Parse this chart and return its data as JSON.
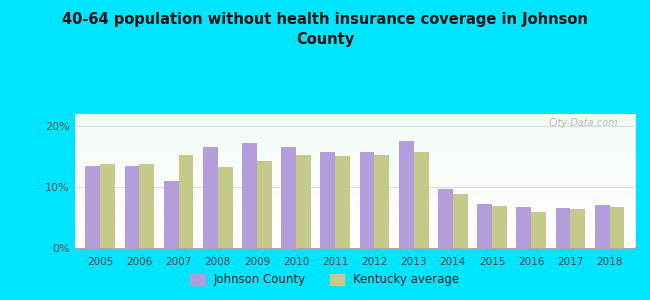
{
  "title": "40-64 population without health insurance coverage in Johnson\nCounty",
  "years": [
    2005,
    2006,
    2007,
    2008,
    2009,
    2010,
    2011,
    2012,
    2013,
    2014,
    2015,
    2016,
    2017,
    2018
  ],
  "johnson_county": [
    13.5,
    13.5,
    11.0,
    16.5,
    17.2,
    16.5,
    15.8,
    15.8,
    17.5,
    9.7,
    7.2,
    6.7,
    6.5,
    7.0
  ],
  "kentucky_avg": [
    13.8,
    13.7,
    15.2,
    13.2,
    14.2,
    15.2,
    15.0,
    15.2,
    15.8,
    8.8,
    6.8,
    5.8,
    6.3,
    6.7
  ],
  "bar_color_johnson": "#b39ddb",
  "bar_color_kentucky": "#c5c98a",
  "background_outer": "#00e5ff",
  "yticks": [
    0,
    10,
    20
  ],
  "ytick_labels": [
    "0%",
    "10%",
    "20%"
  ],
  "ylim": [
    0,
    22
  ],
  "legend_johnson": "Johnson County",
  "legend_kentucky": "Kentucky average",
  "bar_width": 0.38,
  "watermark": "City-Data.com"
}
